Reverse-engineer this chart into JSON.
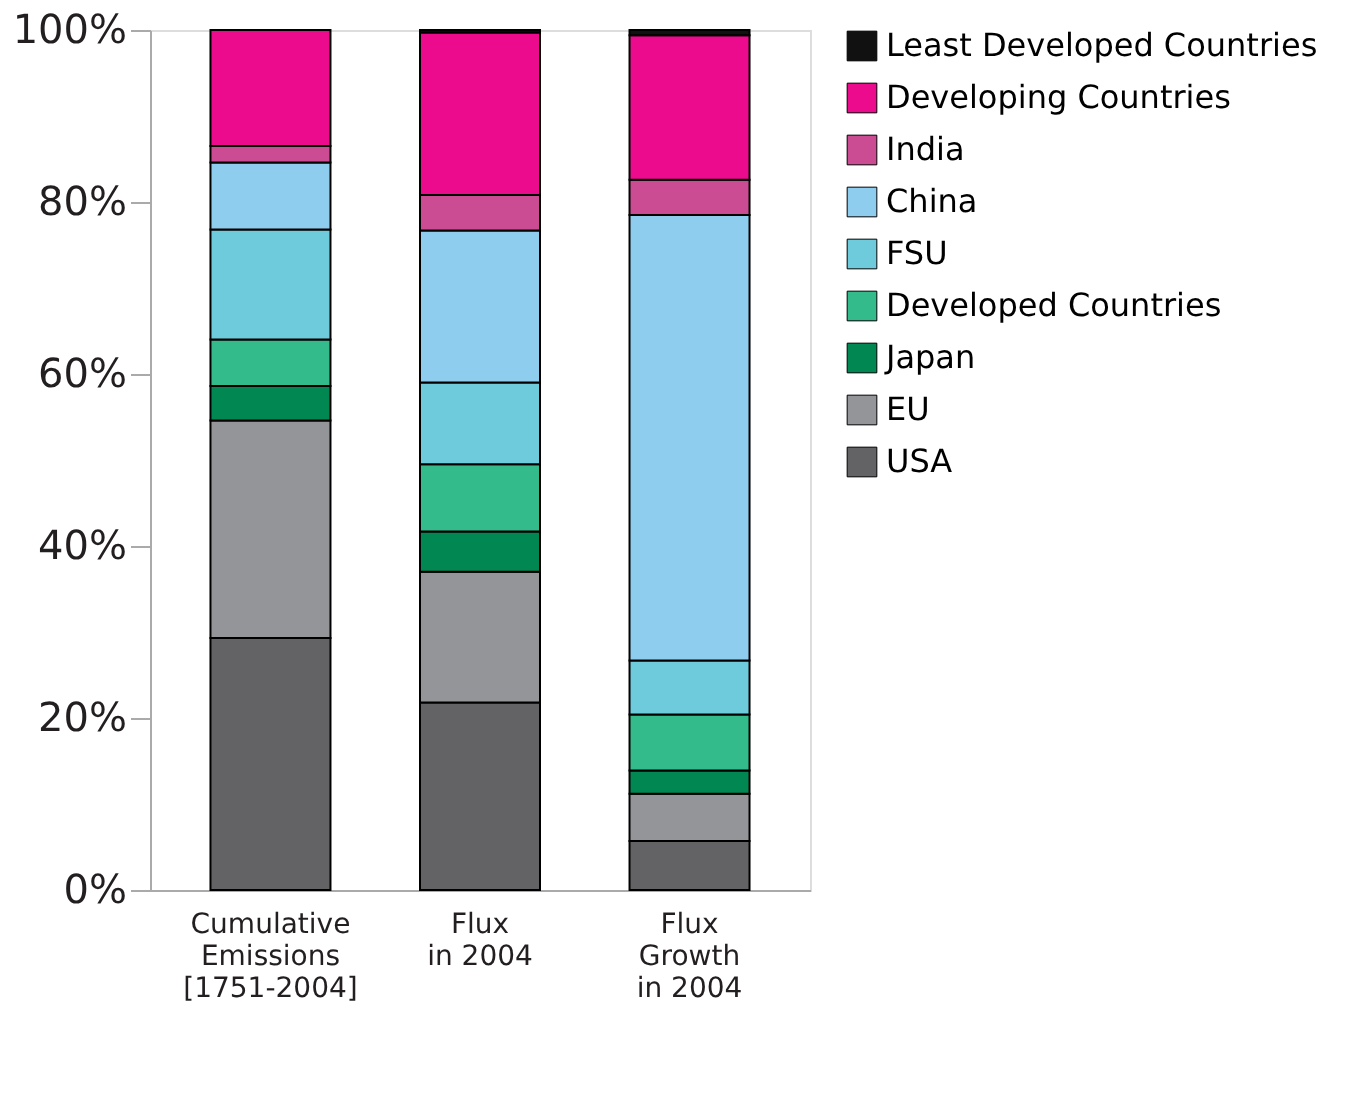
{
  "chart_data": {
    "type": "bar",
    "stacked": true,
    "categories": [
      "Cumulative\nEmissions\n[1751-2004]",
      "Flux\nin 2004",
      "Flux\nGrowth\nin 2004"
    ],
    "series": [
      {
        "name": "USA",
        "color": "#636365",
        "values": [
          29.3,
          21.8,
          5.7
        ]
      },
      {
        "name": "EU",
        "color": "#939598",
        "values": [
          25.3,
          15.2,
          5.5
        ]
      },
      {
        "name": "Japan",
        "color": "#008752",
        "values": [
          4.0,
          4.7,
          2.7
        ]
      },
      {
        "name": "Developed Countries",
        "color": "#33bb8c",
        "values": [
          5.4,
          7.8,
          6.5
        ]
      },
      {
        "name": "FSU",
        "color": "#6dcbdb",
        "values": [
          12.8,
          9.5,
          6.3
        ]
      },
      {
        "name": "China",
        "color": "#8ecdee",
        "values": [
          7.8,
          17.7,
          51.8
        ]
      },
      {
        "name": "India",
        "color": "#cc4c93",
        "values": [
          1.9,
          4.1,
          4.1
        ]
      },
      {
        "name": "Developing Countries",
        "color": "#ec0b8d",
        "values": [
          13.5,
          18.9,
          16.8
        ]
      },
      {
        "name": "Least Developed Countries",
        "color": "#111111",
        "values": [
          null,
          0.3,
          0.6
        ]
      }
    ],
    "ylim": [
      0,
      100
    ],
    "yticks": [
      {
        "value": 0,
        "label": "0%"
      },
      {
        "value": 20,
        "label": "20%"
      },
      {
        "value": 40,
        "label": "40%"
      },
      {
        "value": 60,
        "label": "60%"
      },
      {
        "value": 80,
        "label": "80%"
      },
      {
        "value": 100,
        "label": "100%"
      }
    ],
    "grid": false,
    "legend": "right"
  }
}
